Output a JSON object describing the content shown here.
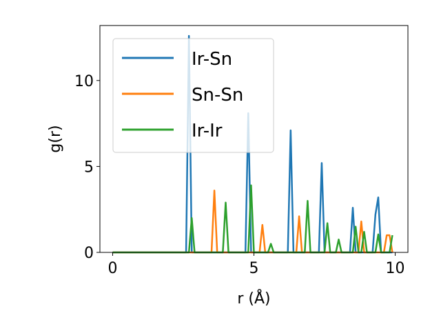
{
  "chart_data": {
    "type": "line",
    "xlabel": "r (Å)",
    "ylabel": "g(r)",
    "xlim": [
      -0.45,
      10.45
    ],
    "ylim": [
      0,
      13.2
    ],
    "xticks": [
      0,
      5,
      10
    ],
    "xtick_labels": [
      "0",
      "5",
      "10"
    ],
    "yticks": [
      0,
      5,
      10
    ],
    "ytick_labels": [
      "0",
      "5",
      "10"
    ],
    "grid": false,
    "legend_position": "top-left",
    "series": [
      {
        "name": "Ir-Sn",
        "color": "#1f77b4",
        "x": [
          0,
          2.6,
          2.7,
          2.8,
          4.7,
          4.8,
          4.9,
          6.2,
          6.3,
          6.4,
          7.3,
          7.4,
          7.5,
          8.4,
          8.5,
          8.6,
          9.2,
          9.3,
          9.4,
          9.5,
          9.9
        ],
        "y": [
          0,
          0,
          12.6,
          0,
          0,
          8.1,
          0,
          0,
          7.1,
          0,
          0,
          5.2,
          0,
          0,
          2.6,
          0,
          0,
          2.2,
          3.2,
          0,
          0
        ]
      },
      {
        "name": "Sn-Sn",
        "color": "#ff7f0e",
        "x": [
          0,
          3.5,
          3.6,
          3.7,
          5.2,
          5.3,
          5.4,
          6.5,
          6.6,
          6.7,
          8.7,
          8.8,
          8.9,
          9.6,
          9.7,
          9.8,
          9.9
        ],
        "y": [
          0,
          0,
          3.6,
          0,
          0,
          1.6,
          0,
          0,
          2.1,
          0,
          0,
          1.8,
          0,
          0,
          1.0,
          1.0,
          0
        ]
      },
      {
        "name": "Ir-Ir",
        "color": "#2ca02c",
        "x": [
          0,
          2.7,
          2.8,
          2.9,
          3.9,
          4.0,
          4.1,
          4.8,
          4.9,
          5.0,
          5.5,
          5.6,
          5.7,
          6.8,
          6.9,
          7.0,
          7.5,
          7.6,
          7.7,
          7.9,
          8.0,
          8.1,
          8.5,
          8.6,
          8.7,
          8.8,
          8.9,
          9.0,
          9.3,
          9.4,
          9.5,
          9.8,
          9.9
        ],
        "y": [
          0,
          0,
          2.0,
          0,
          0,
          2.9,
          0,
          0,
          3.9,
          0,
          0,
          0.5,
          0,
          0,
          3.0,
          0,
          0,
          1.7,
          0,
          0,
          0.75,
          0,
          0,
          1.5,
          0,
          0,
          1.2,
          0,
          0,
          1.05,
          0,
          0,
          1.0
        ]
      }
    ]
  }
}
